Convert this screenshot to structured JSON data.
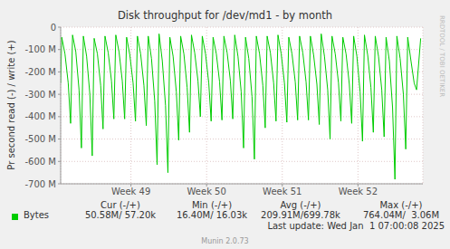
{
  "chart_data": {
    "type": "line",
    "title": "Disk throughput for /dev/md1 - by month",
    "y_label": "Pr second read (-) / write (+)",
    "side_text": "RRDTOOL / TOBI OETIKER",
    "x": [
      0,
      0.1,
      0.4,
      0.7,
      0.92,
      1.1,
      1.4,
      1.7,
      1.92,
      2.1,
      2.4,
      2.7,
      2.92,
      3.1,
      3.4,
      3.7,
      3.92,
      4.1,
      4.4,
      4.7,
      4.92,
      5.1,
      5.4,
      5.7,
      5.92,
      6.1,
      6.4,
      6.7,
      6.92,
      7.1,
      7.4,
      7.7,
      7.92,
      8.1,
      8.4,
      8.7,
      8.92,
      9.1,
      9.4,
      9.7,
      9.92,
      10.1,
      10.4,
      10.7,
      10.92,
      11.1,
      11.4,
      11.7,
      11.92,
      12.1,
      12.4,
      12.7,
      12.92,
      13.1,
      13.4,
      13.7,
      13.92,
      14.1,
      14.4,
      14.7,
      14.92,
      15.1,
      15.4,
      15.7,
      15.92,
      16.1,
      16.4,
      16.7,
      16.92,
      17.1,
      17.4,
      17.7,
      17.92,
      18.1,
      18.4,
      18.7,
      18.92,
      19.1,
      19.4,
      19.7,
      19.92,
      20.1,
      20.4,
      20.7,
      20.92,
      21.1,
      21.4,
      21.7,
      21.92,
      22.1,
      22.4,
      22.7,
      22.92,
      23.1,
      23.4,
      23.7,
      23.92,
      24.1,
      24.4,
      24.7,
      24.92,
      25.1,
      25.4,
      25.7,
      25.92,
      26.1,
      26.4,
      26.7,
      26.92,
      27.1,
      27.4,
      27.7,
      27.92,
      28.1,
      28.4,
      28.7,
      28.92,
      29.1,
      29.4,
      29.7,
      29.92,
      30.1,
      30.4,
      30.7,
      30.92,
      31.1,
      31.4,
      31.7,
      31.92,
      32.1,
      32.4,
      32.7,
      32.92,
      33.3
    ],
    "series": [
      {
        "name": "Bytes",
        "color": "#00cc00",
        "values": [
          -250,
          -45,
          -120,
          -250,
          -430,
          -35,
          -110,
          -280,
          -540,
          -40,
          -130,
          -300,
          -575,
          -50,
          -120,
          -260,
          -455,
          -40,
          -115,
          -240,
          -410,
          -35,
          -110,
          -240,
          -410,
          -45,
          -125,
          -250,
          -420,
          -40,
          -120,
          -260,
          -440,
          -40,
          -140,
          -330,
          -615,
          -30,
          -150,
          -350,
          -650,
          -45,
          -130,
          -290,
          -505,
          -40,
          -120,
          -270,
          -470,
          -35,
          -115,
          -240,
          -400,
          -40,
          -120,
          -250,
          -420,
          -45,
          -120,
          -245,
          -415,
          -40,
          -115,
          -240,
          -410,
          -35,
          -130,
          -290,
          -540,
          -45,
          -140,
          -310,
          -590,
          -40,
          -120,
          -260,
          -450,
          -40,
          -115,
          -250,
          -420,
          -35,
          -120,
          -250,
          -425,
          -45,
          -120,
          -245,
          -415,
          -40,
          -115,
          -245,
          -415,
          -40,
          -125,
          -255,
          -435,
          -30,
          -130,
          -280,
          -500,
          -40,
          -120,
          -250,
          -420,
          -45,
          -120,
          -255,
          -430,
          -40,
          -130,
          -290,
          -510,
          -35,
          -125,
          -270,
          -470,
          -40,
          -130,
          -280,
          -490,
          -45,
          -150,
          -360,
          -680,
          -40,
          -140,
          -300,
          -545,
          -45,
          -150,
          -250,
          -280,
          -50
        ]
      }
    ],
    "xlim": [
      0,
      33.5
    ],
    "xticks": [
      {
        "value": 6.5,
        "label": "Week 49"
      },
      {
        "value": 13.5,
        "label": "Week 50"
      },
      {
        "value": 20.5,
        "label": "Week 51"
      },
      {
        "value": 27.5,
        "label": "Week 52"
      }
    ],
    "ylim": [
      -700,
      0
    ],
    "yticks": [
      {
        "value": -700,
        "label": "-700 M"
      },
      {
        "value": -600,
        "label": "-600 M"
      },
      {
        "value": -500,
        "label": "-500 M"
      },
      {
        "value": -400,
        "label": "-400 M"
      },
      {
        "value": -300,
        "label": "-300 M"
      },
      {
        "value": -200,
        "label": "-200 M"
      },
      {
        "value": -100,
        "label": "-100 M"
      },
      0
    ],
    "grid": true,
    "legend_table": {
      "columns": [
        "Cur (-/+)",
        "Min (-/+)",
        "Avg (-/+)",
        "Max (-/+)"
      ],
      "rows": [
        {
          "name": "Bytes",
          "color": "#00cc00",
          "cells": [
            "50.58M/ 57.20k",
            "16.40M/ 16.03k",
            "209.91M/699.78k",
            "764.04M/  3.06M"
          ]
        }
      ]
    },
    "last_update": "Last update: Wed Jan  1 07:00:08 2025",
    "footer": "Munin 2.0.73"
  }
}
